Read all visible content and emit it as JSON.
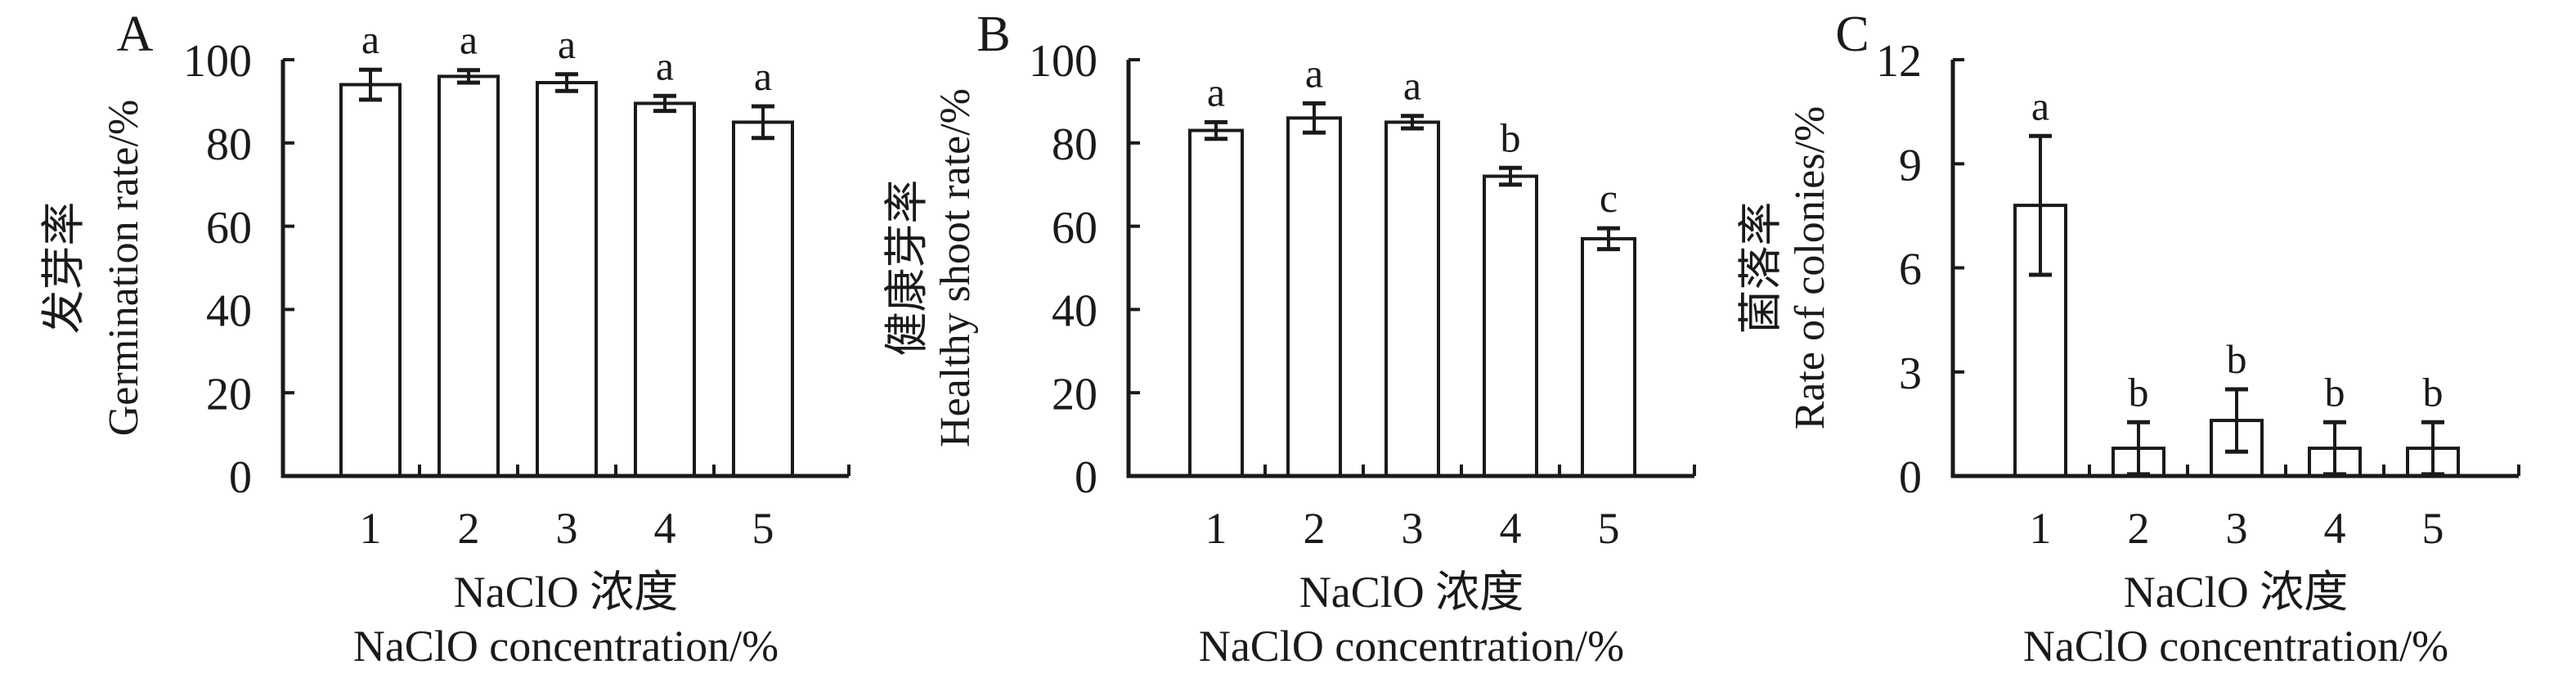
{
  "figure": {
    "background": "#ffffff",
    "ink_color": "#1a1a1a",
    "bar_fill": "#ffffff",
    "description_visible_panels": [
      "A",
      "B",
      "C"
    ]
  },
  "chart_data": [
    {
      "type": "bar",
      "panel_letter": "A",
      "ylabel_zh": "发芽率",
      "ylabel_en": "Germination rate/%",
      "xlabel_zh": "NaClO 浓度",
      "xlabel_en": "NaClO concentration/%",
      "categories": [
        "1",
        "2",
        "3",
        "4",
        "5"
      ],
      "values": [
        94,
        96,
        94.5,
        89.5,
        85
      ],
      "errors": [
        3.6,
        1.5,
        2,
        1.8,
        3.8
      ],
      "sig_letters": [
        "a",
        "a",
        "a",
        "a",
        "a"
      ],
      "yticks": [
        0,
        20,
        40,
        60,
        80,
        100
      ],
      "ylim": [
        0,
        100
      ],
      "grid": false,
      "legend": false
    },
    {
      "type": "bar",
      "panel_letter": "B",
      "ylabel_zh": "健康芽率",
      "ylabel_en": "Healthy shoot rate/%",
      "xlabel_zh": "NaClO 浓度",
      "xlabel_en": "NaClO concentration/%",
      "categories": [
        "1",
        "2",
        "3",
        "4",
        "5"
      ],
      "values": [
        83,
        86,
        85,
        72,
        57
      ],
      "errors": [
        2,
        3.5,
        1.5,
        2,
        2.5
      ],
      "sig_letters": [
        "a",
        "a",
        "a",
        "b",
        "c"
      ],
      "yticks": [
        0,
        20,
        40,
        60,
        80,
        100
      ],
      "ylim": [
        0,
        100
      ],
      "grid": false,
      "legend": false
    },
    {
      "type": "bar",
      "panel_letter": "C",
      "ylabel_zh": "菌落率",
      "ylabel_en": "Rate of colonies/%",
      "xlabel_zh": "NaClO 浓度",
      "xlabel_en": "NaClO concentration/%",
      "categories": [
        "1",
        "2",
        "3",
        "4",
        "5"
      ],
      "values": [
        7.8,
        0.8,
        1.6,
        0.8,
        0.8
      ],
      "errors": [
        2.0,
        0.75,
        0.9,
        0.75,
        0.75
      ],
      "sig_letters": [
        "a",
        "b",
        "b",
        "b",
        "b"
      ],
      "yticks": [
        0,
        3,
        6,
        9,
        12
      ],
      "ylim": [
        0,
        12
      ],
      "grid": false,
      "legend": false
    }
  ]
}
